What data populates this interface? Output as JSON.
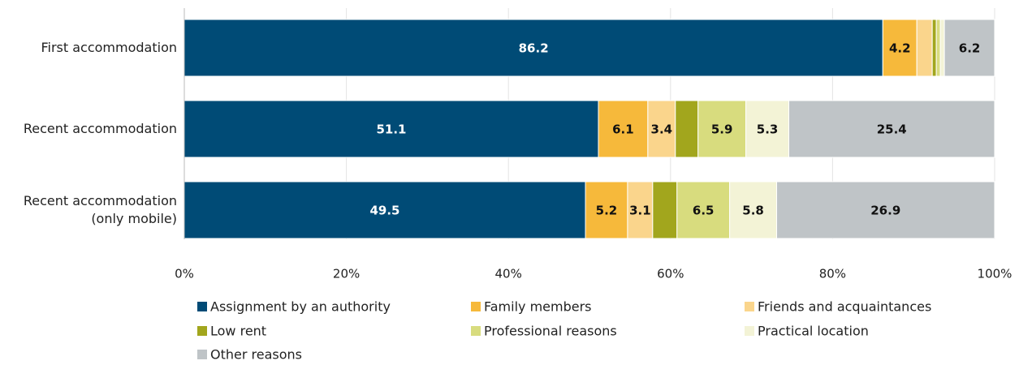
{
  "chart_data": {
    "type": "stacked_bar_horizontal",
    "categories": [
      "First accommodation",
      "Recent accommodation",
      "Recent accommodation\n(only mobile)"
    ],
    "series": [
      {
        "name": "Assignment by an authority",
        "color": "#004b76",
        "values": [
          86.2,
          51.1,
          49.5
        ]
      },
      {
        "name": "Family members",
        "color": "#f6b93b",
        "values": [
          4.2,
          6.1,
          5.2
        ]
      },
      {
        "name": "Friends and acquaintances",
        "color": "#fad58c",
        "values": [
          1.9,
          3.4,
          3.1
        ]
      },
      {
        "name": "Low rent",
        "color": "#a2a61d",
        "values": [
          0.5,
          2.8,
          3.0
        ]
      },
      {
        "name": "Professional reasons",
        "color": "#d8dc7e",
        "values": [
          0.5,
          5.9,
          6.5
        ]
      },
      {
        "name": "Practical location",
        "color": "#f3f3d6",
        "values": [
          0.5,
          5.3,
          5.8
        ]
      },
      {
        "name": "Other reasons",
        "color": "#bfc4c7",
        "values": [
          6.2,
          25.4,
          26.9
        ]
      }
    ],
    "xlim": [
      0,
      100
    ],
    "xticks": [
      {
        "value": 0,
        "label": "0%"
      },
      {
        "value": 20,
        "label": "20%"
      },
      {
        "value": 40,
        "label": "40%"
      },
      {
        "value": 60,
        "label": "60%"
      },
      {
        "value": 80,
        "label": "80%"
      },
      {
        "value": 100,
        "label": "100%"
      }
    ],
    "grid": true
  }
}
